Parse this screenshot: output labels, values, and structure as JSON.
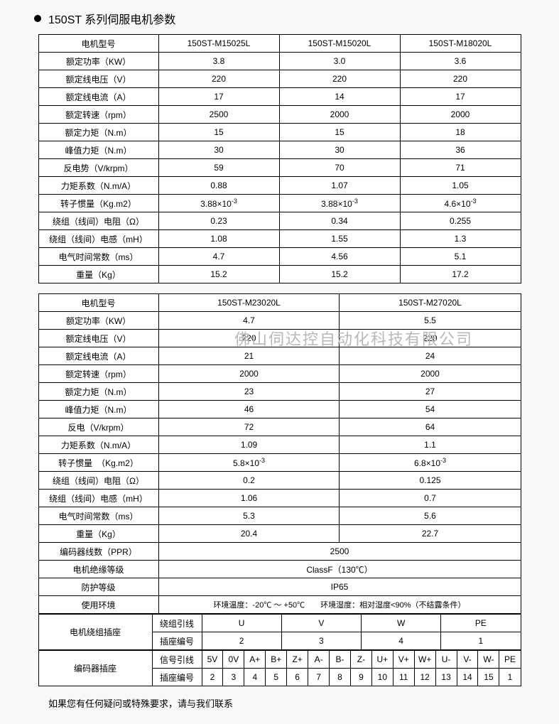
{
  "title": "150ST 系列伺服电机参数",
  "watermark": "佛山伺达控自动化科技有限公司",
  "footer_text": "如果您有任何疑问或特殊要求，请与我们联系",
  "param_label_header": "电机型号",
  "param_labels": [
    "额定功率（KW）",
    "额定线电压（V）",
    "额定线电流（A）",
    "额定转速（rpm）",
    "额定力矩（N.m）",
    "峰值力矩（N.m）",
    "反电势（V/krpm）",
    "力矩系数（N.m/A）",
    "转子惯量（Kg.m2）",
    "绕组（线间）电阻（Ω）",
    "绕组（线间）电感（mH）",
    "电气时间常数（ms）",
    "重量（Kg）"
  ],
  "table1": {
    "models": [
      "150ST-M15025L",
      "150ST-M15020L",
      "150ST-M18020L"
    ],
    "rows": [
      [
        "3.8",
        "3.0",
        "3.6"
      ],
      [
        "220",
        "220",
        "220"
      ],
      [
        "17",
        "14",
        "17"
      ],
      [
        "2500",
        "2000",
        "2000"
      ],
      [
        "15",
        "15",
        "18"
      ],
      [
        "30",
        "30",
        "36"
      ],
      [
        "59",
        "70",
        "71"
      ],
      [
        "0.88",
        "1.07",
        "1.05"
      ],
      [
        "3.88×10⁻³",
        "3.88×10⁻³",
        "4.6×10⁻³"
      ],
      [
        "0.23",
        "0.34",
        "0.255"
      ],
      [
        "1.08",
        "1.55",
        "1.3"
      ],
      [
        "4.7",
        "4.56",
        "5.1"
      ],
      [
        "15.2",
        "15.2",
        "17.2"
      ]
    ]
  },
  "param_labels2": [
    "额定功率（KW）",
    "额定线电压（V）",
    "额定线电流（A）",
    "额定转速（rpm）",
    "额定力矩（N.m）",
    "峰值力矩（N.m）",
    "反电（V/krpm）",
    "力矩系数（N.m/A）",
    "转子惯量　（Kg.m2）",
    "绕组（线间）电阻（Ω）",
    "绕组（线间）电感（mH）",
    "电气时间常数（ms）",
    "重量（Kg）"
  ],
  "table2": {
    "models": [
      "150ST-M23020L",
      "150ST-M27020L"
    ],
    "rows": [
      [
        "4.7",
        "5.5"
      ],
      [
        "220",
        "220"
      ],
      [
        "21",
        "24"
      ],
      [
        "2000",
        "2000"
      ],
      [
        "23",
        "27"
      ],
      [
        "46",
        "54"
      ],
      [
        "72",
        "64"
      ],
      [
        "1.09",
        "1.1"
      ],
      [
        "5.8×10⁻³",
        "6.8×10⁻³"
      ],
      [
        "0.2",
        "0.125"
      ],
      [
        "1.06",
        "0.7"
      ],
      [
        "5.3",
        "5.6"
      ],
      [
        "20.4",
        "22.7"
      ]
    ]
  },
  "common_specs": {
    "encoder_lines_label": "编码器线数（PPR）",
    "encoder_lines_value": "2500",
    "insulation_label": "电机绝缘等级",
    "insulation_value": "ClassF（130℃）",
    "protection_label": "防护等级",
    "protection_value": "IP65",
    "env_label": "使用环境",
    "env_value": "环境温度：-20℃ ～ +50℃　　环境湿度：相对湿度<90%（不结露条件）"
  },
  "winding_socket": {
    "label": "电机绕组插座",
    "row1_label": "绕组引线",
    "row1": [
      "U",
      "V",
      "W",
      "PE"
    ],
    "row2_label": "插座编号",
    "row2": [
      "2",
      "3",
      "4",
      "1"
    ]
  },
  "encoder_socket": {
    "label": "编码器插座",
    "row1_label": "信号引线",
    "row1": [
      "5V",
      "0V",
      "A+",
      "B+",
      "Z+",
      "A-",
      "B-",
      "Z-",
      "U+",
      "V+",
      "W+",
      "U-",
      "V-",
      "W-",
      "PE"
    ],
    "row2_label": "插座编号",
    "row2": [
      "2",
      "3",
      "4",
      "5",
      "6",
      "7",
      "8",
      "9",
      "10",
      "11",
      "12",
      "13",
      "14",
      "15",
      "1"
    ]
  }
}
